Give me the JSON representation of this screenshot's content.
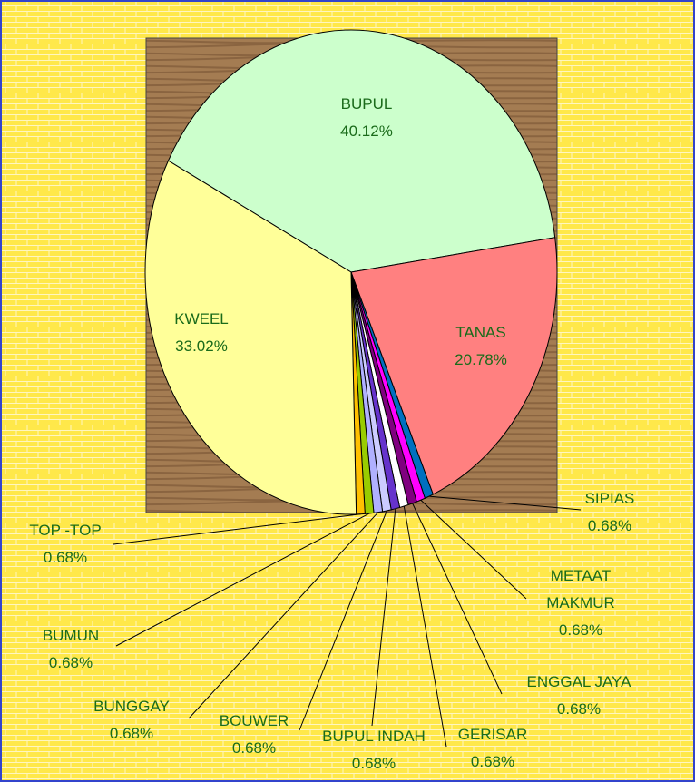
{
  "chart_data": {
    "type": "pie",
    "categories": [
      "BUPUL",
      "TANAS",
      "SIPIAS",
      "METAAT MAKMUR",
      "ENGGAL JAYA",
      "GERISAR",
      "BUPUL INDAH",
      "BOUWER",
      "BUNGGAY",
      "BUMUN",
      "TOP -TOP",
      "KWEEL"
    ],
    "values": [
      40.12,
      20.78,
      0.68,
      0.68,
      0.68,
      0.68,
      0.68,
      0.68,
      0.68,
      0.68,
      0.68,
      33.02
    ],
    "value_labels": [
      "40.12%",
      "20.78%",
      "0.68%",
      "0.68%",
      "0.68%",
      "0.68%",
      "0.68%",
      "0.68%",
      "0.68%",
      "0.68%",
      "0.68%",
      "33.02%"
    ],
    "colors": [
      "#ccffcc",
      "#ff8080",
      "#0070c0",
      "#ff00ff",
      "#800080",
      "#ffffff",
      "#6633cc",
      "#ccccff",
      "#b0b0ff",
      "#99cc00",
      "#ffc000",
      "#ffff99"
    ]
  }
}
